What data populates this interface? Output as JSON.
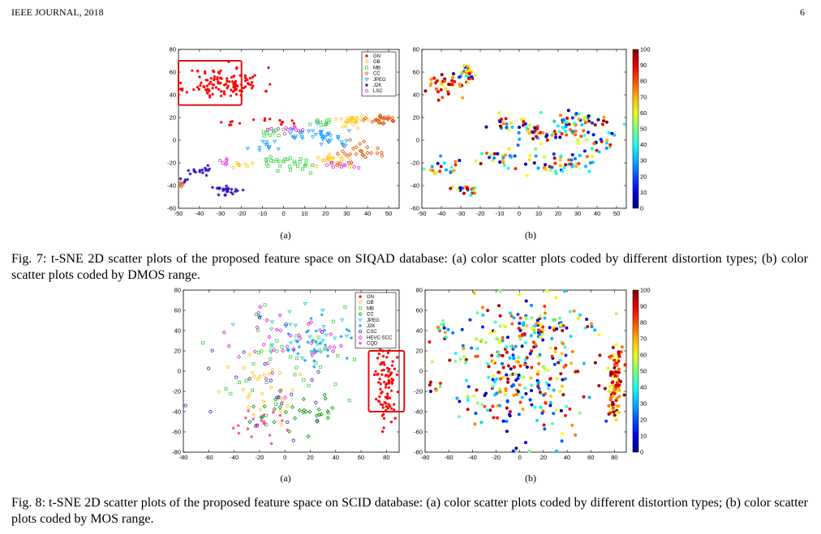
{
  "header": {
    "left": "IEEE JOURNAL, 2018",
    "right": "6"
  },
  "fig7": {
    "caption": "Fig. 7: t-SNE 2D scatter plots of the proposed feature space on SIQAD database: (a) color scatter plots coded by different distortion types; (b) color scatter plots coded by DMOS range.",
    "sub_a": "(a)",
    "sub_b": "(b)",
    "legend": [
      "GN",
      "GB",
      "MB",
      "CC",
      "JPEG",
      "J2K",
      "LSC"
    ],
    "colorbar_ticks": [
      "100",
      "90",
      "80",
      "70",
      "60",
      "50",
      "40",
      "30",
      "20",
      "10",
      "0"
    ]
  },
  "fig8": {
    "caption": "Fig. 8: t-SNE 2D scatter plots of the proposed feature space on SCID database: (a) color scatter plots coded by different distortion types; (b) color scatter plots coded by MOS range.",
    "sub_a": "(a)",
    "sub_b": "(b)",
    "legend": [
      "GN",
      "GB",
      "MB",
      "CC",
      "JPEG",
      "J2K",
      "CSC",
      "HEVC-SCC",
      "CQD"
    ],
    "colorbar_ticks": [
      "100",
      "90",
      "80",
      "70",
      "60",
      "50",
      "40",
      "30",
      "20",
      "10",
      "0"
    ]
  },
  "chart_data": [
    {
      "type": "scatter",
      "id": "fig7a",
      "xlim": [
        -50,
        55
      ],
      "ylim": [
        -60,
        80
      ],
      "xticks": [
        -50,
        -40,
        -30,
        -20,
        -10,
        0,
        10,
        20,
        30,
        40,
        50
      ],
      "yticks": [
        -60,
        -40,
        -20,
        0,
        20,
        40,
        60,
        80
      ],
      "legend_position": "top-right",
      "highlight_box": {
        "x": [
          -50,
          -20
        ],
        "y": [
          31,
          70
        ],
        "color": "#e01010"
      },
      "series": [
        {
          "name": "GN",
          "color": "#ff0000",
          "clusters": [
            [
              -28,
              50,
              9,
              7,
              120
            ],
            [
              -5,
              17,
              4,
              2,
              10
            ],
            [
              -24,
              14,
              2,
              2,
              6
            ]
          ]
        },
        {
          "name": "GB",
          "color": "#ffc000",
          "clusters": [
            [
              32,
              17,
              4,
              3,
              25
            ],
            [
              25,
              -18,
              6,
              3,
              25
            ],
            [
              -20,
              -20,
              3,
              2,
              8
            ]
          ]
        },
        {
          "name": "MB",
          "color": "#40d040",
          "clusters": [
            [
              -3,
              -18,
              4,
              2,
              15
            ],
            [
              8,
              -22,
              4,
              3,
              15
            ],
            [
              -7,
              6,
              3,
              2,
              10
            ],
            [
              18,
              15,
              3,
              2,
              10
            ]
          ]
        },
        {
          "name": "CC",
          "color": "#e05000",
          "clusters": [
            [
              47,
              19,
              4,
              2,
              25
            ],
            [
              36,
              -10,
              5,
              4,
              25
            ],
            [
              -48,
              -38,
              1,
              1,
              4
            ]
          ]
        },
        {
          "name": "JPEG",
          "color": "#20a0ff",
          "clusters": [
            [
              12,
              5,
              5,
              3,
              25
            ],
            [
              25,
              0,
              5,
              5,
              20
            ],
            [
              -8,
              -5,
              4,
              3,
              12
            ]
          ]
        },
        {
          "name": "J2K",
          "color": "#3010c0",
          "clusters": [
            [
              -28,
              -44,
              5,
              2,
              25
            ],
            [
              -40,
              -26,
              4,
              2,
              15
            ],
            [
              -47,
              -35,
              2,
              2,
              6
            ]
          ]
        },
        {
          "name": "LSC",
          "color": "#e020e0",
          "clusters": [
            [
              3,
              10,
              5,
              2,
              12
            ],
            [
              27,
              -22,
              4,
              2,
              12
            ],
            [
              -28,
              -18,
              2,
              2,
              6
            ]
          ]
        }
      ]
    },
    {
      "type": "scatter",
      "id": "fig7b",
      "xlim": [
        -50,
        55
      ],
      "ylim": [
        -60,
        80
      ],
      "xticks": [
        -50,
        -40,
        -30,
        -20,
        -10,
        0,
        10,
        20,
        30,
        40,
        50
      ],
      "yticks": [
        -60,
        -40,
        -20,
        0,
        20,
        40,
        60,
        80
      ],
      "color_scale": {
        "min": 0,
        "max": 100,
        "map": "jet"
      },
      "clusters": [
        [
          -35,
          48,
          6,
          5,
          40
        ],
        [
          -27,
          58,
          3,
          3,
          25
        ],
        [
          -5,
          15,
          5,
          4,
          20
        ],
        [
          30,
          15,
          10,
          6,
          60
        ],
        [
          10,
          5,
          8,
          5,
          40
        ],
        [
          20,
          -20,
          10,
          5,
          50
        ],
        [
          -28,
          -44,
          4,
          2,
          20
        ],
        [
          -38,
          -25,
          6,
          4,
          20
        ],
        [
          -12,
          -15,
          5,
          4,
          20
        ],
        [
          40,
          -5,
          5,
          4,
          20
        ]
      ]
    },
    {
      "type": "scatter",
      "id": "fig8a",
      "xlim": [
        -80,
        90
      ],
      "ylim": [
        -80,
        80
      ],
      "xticks": [
        -80,
        -60,
        -40,
        -20,
        0,
        20,
        40,
        60,
        80
      ],
      "yticks": [
        -80,
        -60,
        -40,
        -20,
        0,
        20,
        40,
        60,
        80
      ],
      "legend_position": "top-right",
      "highlight_box": {
        "x": [
          66,
          94
        ],
        "y": [
          -40,
          20
        ],
        "color": "#e01010"
      },
      "series": [
        {
          "name": "GN",
          "color": "#ff0000",
          "clusters": [
            [
              80,
              -12,
              4,
              20,
              90
            ]
          ]
        },
        {
          "name": "GB",
          "color": "#ffc000",
          "clusters": [
            [
              -20,
              -15,
              15,
              20,
              30
            ]
          ]
        },
        {
          "name": "MB",
          "color": "#40d040",
          "clusters": [
            [
              -5,
              10,
              25,
              30,
              45
            ]
          ]
        },
        {
          "name": "CC",
          "color": "#009000",
          "clusters": [
            [
              5,
              -40,
              18,
              12,
              30
            ]
          ]
        },
        {
          "name": "JPEG",
          "color": "#20d0d0",
          "clusters": [
            [
              15,
              40,
              18,
              15,
              30
            ]
          ]
        },
        {
          "name": "J2K",
          "color": "#20a0ff",
          "clusters": [
            [
              25,
              30,
              12,
              12,
              30
            ]
          ]
        },
        {
          "name": "CSC",
          "color": "#3010c0",
          "clusters": [
            [
              -10,
              0,
              30,
              30,
              25
            ]
          ]
        },
        {
          "name": "HEVC-SCC",
          "color": "#e020e0",
          "clusters": [
            [
              0,
              30,
              25,
              20,
              35
            ]
          ]
        },
        {
          "name": "CQD",
          "color": "#ff40a0",
          "clusters": [
            [
              -20,
              -55,
              10,
              8,
              20
            ]
          ]
        }
      ]
    },
    {
      "type": "scatter",
      "id": "fig8b",
      "xlim": [
        -80,
        90
      ],
      "ylim": [
        -80,
        80
      ],
      "xticks": [
        -80,
        -60,
        -40,
        -20,
        0,
        20,
        40,
        60,
        80
      ],
      "yticks": [
        -80,
        -60,
        -40,
        -20,
        0,
        20,
        40,
        60,
        80
      ],
      "color_scale": {
        "min": 0,
        "max": 100,
        "map": "jet"
      },
      "clusters": [
        [
          80,
          -12,
          3,
          18,
          90
        ],
        [
          0,
          0,
          30,
          35,
          300
        ],
        [
          -65,
          40,
          3,
          4,
          8
        ],
        [
          -70,
          -15,
          3,
          3,
          6
        ],
        [
          20,
          45,
          20,
          10,
          60
        ]
      ]
    }
  ]
}
